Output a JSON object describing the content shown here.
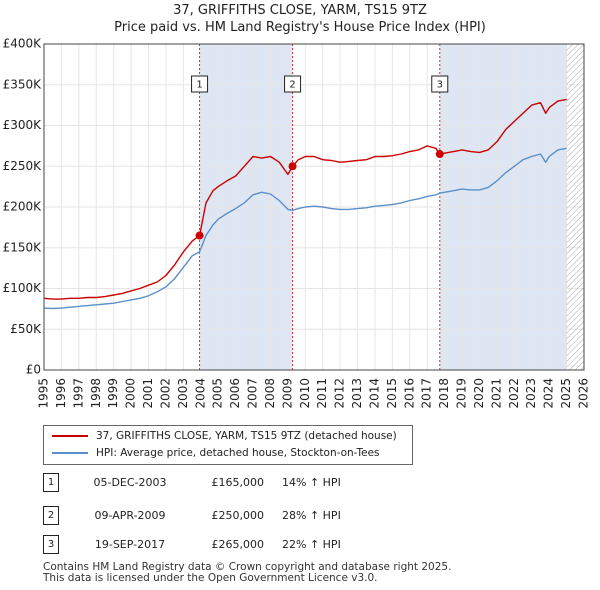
{
  "title_line1": "37, GRIFFITHS CLOSE, YARM, TS15 9TZ",
  "title_line2": "Price paid vs. HM Land Registry's House Price Index (HPI)",
  "colors": {
    "property": "#cc0000",
    "hpi": "#5b8fc9",
    "shade": "#dde6f2",
    "hatch": "#aaaaaa",
    "grid": "#e6e6e6"
  },
  "legend": {
    "property_label": "37, GRIFFITHS CLOSE, YARM, TS15 9TZ (detached house)",
    "hpi_label": "HPI: Average price, detached house, Stockton-on-Tees"
  },
  "sales": [
    {
      "num": "1",
      "date": "05-DEC-2003",
      "price": "£165,000",
      "hpi": "14% ↑ HPI"
    },
    {
      "num": "2",
      "date": "09-APR-2009",
      "price": "£250,000",
      "hpi": "28% ↑ HPI"
    },
    {
      "num": "3",
      "date": "19-SEP-2017",
      "price": "£265,000",
      "hpi": "22% ↑ HPI"
    }
  ],
  "footer": {
    "line1": "Contains HM Land Registry data © Crown copyright and database right 2025.",
    "line2": "This data is licensed under the Open Government Licence v3.0."
  },
  "chart_data": {
    "type": "line",
    "title": "37, GRIFFITHS CLOSE, YARM, TS15 9TZ",
    "subtitle": "Price paid vs. HM Land Registry's House Price Index (HPI)",
    "xlabel": "",
    "ylabel": "",
    "xlim": [
      1995,
      2026
    ],
    "ylim": [
      0,
      400000
    ],
    "grid": true,
    "x_ticks": [
      1995,
      1996,
      1997,
      1998,
      1999,
      2000,
      2001,
      2002,
      2003,
      2004,
      2005,
      2006,
      2007,
      2008,
      2009,
      2010,
      2011,
      2012,
      2013,
      2014,
      2015,
      2016,
      2017,
      2018,
      2019,
      2020,
      2021,
      2022,
      2023,
      2024,
      2025,
      2026
    ],
    "y_ticks": [
      {
        "value": 0,
        "label": "£0"
      },
      {
        "value": 50000,
        "label": "£50K"
      },
      {
        "value": 100000,
        "label": "£100K"
      },
      {
        "value": 150000,
        "label": "£150K"
      },
      {
        "value": 200000,
        "label": "£200K"
      },
      {
        "value": 250000,
        "label": "£250K"
      },
      {
        "value": 300000,
        "label": "£300K"
      },
      {
        "value": 350000,
        "label": "£350K"
      },
      {
        "value": 400000,
        "label": "£400K"
      }
    ],
    "shaded_spans": [
      [
        2003.93,
        2009.27
      ],
      [
        2017.72,
        2025.0
      ]
    ],
    "hatch_start": 2025.0,
    "sale_markers": [
      {
        "num": "1",
        "x": 2003.93,
        "y": 165000
      },
      {
        "num": "2",
        "x": 2009.27,
        "y": 250000
      },
      {
        "num": "3",
        "x": 2017.72,
        "y": 265000
      }
    ],
    "series": [
      {
        "name": "37, GRIFFITHS CLOSE, YARM, TS15 9TZ (detached house)",
        "x": [
          1995.0,
          1995.5,
          1996.0,
          1996.5,
          1997.0,
          1997.5,
          1998.0,
          1998.5,
          1999.0,
          1999.5,
          2000.0,
          2000.5,
          2001.0,
          2001.5,
          2002.0,
          2002.5,
          2003.0,
          2003.5,
          2003.93,
          2004.3,
          2004.7,
          2005.0,
          2005.5,
          2006.0,
          2006.5,
          2007.0,
          2007.5,
          2008.0,
          2008.5,
          2009.0,
          2009.27,
          2009.6,
          2010.0,
          2010.5,
          2011.0,
          2011.5,
          2012.0,
          2012.5,
          2013.0,
          2013.5,
          2014.0,
          2014.5,
          2015.0,
          2015.5,
          2016.0,
          2016.5,
          2017.0,
          2017.5,
          2017.72,
          2018.0,
          2018.5,
          2019.0,
          2019.5,
          2020.0,
          2020.5,
          2021.0,
          2021.5,
          2022.0,
          2022.5,
          2023.0,
          2023.5,
          2023.8,
          2024.0,
          2024.5,
          2025.0
        ],
        "y": [
          88000,
          87000,
          87000,
          88000,
          88000,
          89000,
          89000,
          90000,
          92000,
          94000,
          97000,
          100000,
          104000,
          108000,
          116000,
          129000,
          145000,
          158000,
          165000,
          205000,
          220000,
          225000,
          232000,
          238000,
          250000,
          262000,
          260000,
          262000,
          255000,
          240000,
          250000,
          258000,
          262000,
          262000,
          258000,
          257000,
          255000,
          256000,
          257000,
          258000,
          262000,
          262000,
          263000,
          265000,
          268000,
          270000,
          275000,
          272000,
          265000,
          266000,
          268000,
          270000,
          268000,
          267000,
          270000,
          280000,
          295000,
          305000,
          315000,
          325000,
          328000,
          315000,
          322000,
          330000,
          332000
        ]
      },
      {
        "name": "HPI: Average price, detached house, Stockton-on-Tees",
        "x": [
          1995.0,
          1995.5,
          1996.0,
          1996.5,
          1997.0,
          1997.5,
          1998.0,
          1998.5,
          1999.0,
          1999.5,
          2000.0,
          2000.5,
          2001.0,
          2001.5,
          2002.0,
          2002.5,
          2003.0,
          2003.5,
          2003.93,
          2004.3,
          2004.7,
          2005.0,
          2005.5,
          2006.0,
          2006.5,
          2007.0,
          2007.5,
          2008.0,
          2008.5,
          2009.0,
          2009.27,
          2009.6,
          2010.0,
          2010.5,
          2011.0,
          2011.5,
          2012.0,
          2012.5,
          2013.0,
          2013.5,
          2014.0,
          2014.5,
          2015.0,
          2015.5,
          2016.0,
          2016.5,
          2017.0,
          2017.5,
          2017.72,
          2018.0,
          2018.5,
          2019.0,
          2019.5,
          2020.0,
          2020.5,
          2021.0,
          2021.5,
          2022.0,
          2022.5,
          2023.0,
          2023.5,
          2023.8,
          2024.0,
          2024.5,
          2025.0
        ],
        "y": [
          76000,
          75500,
          76000,
          77000,
          78000,
          79000,
          80000,
          81000,
          82000,
          84000,
          86000,
          88000,
          91000,
          96000,
          102000,
          112000,
          126000,
          140000,
          145000,
          165000,
          178000,
          185000,
          192000,
          198000,
          205000,
          215000,
          218000,
          216000,
          208000,
          197000,
          196000,
          198000,
          200000,
          201000,
          200000,
          198000,
          197000,
          197000,
          198000,
          199000,
          201000,
          202000,
          203000,
          205000,
          208000,
          210000,
          213000,
          215000,
          217000,
          218000,
          220000,
          222000,
          221000,
          221000,
          224000,
          232000,
          242000,
          250000,
          258000,
          262000,
          265000,
          255000,
          262000,
          270000,
          272000
        ]
      }
    ]
  }
}
